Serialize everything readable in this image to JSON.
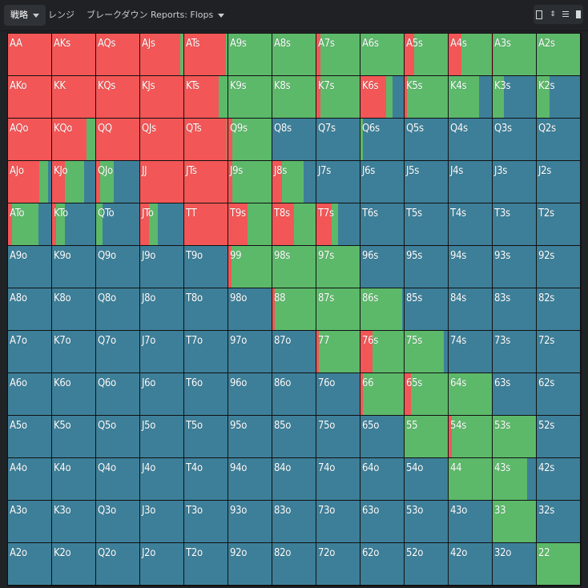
{
  "tabs": [
    {
      "label": "戦略",
      "active": true,
      "dropdown": true
    },
    {
      "label": "レンジ",
      "active": false,
      "dropdown": false
    },
    {
      "label": "ブレークダウン",
      "active": false,
      "dropdown": false
    },
    {
      "label": "Reports: Flops",
      "active": false,
      "dropdown": true
    }
  ],
  "toolbar": {
    "icons": [
      "single-view-icon",
      "expand-icon",
      "list-view-icon",
      "tall-view-icon"
    ]
  },
  "colors": {
    "raise": "#f35656",
    "call": "#5cb96a",
    "fold": "#3d7f99",
    "grid_line": "#111111",
    "background": "#202326"
  },
  "grid": {
    "note": "Each cell: hand label and action frequencies [raise, call, fold] summing to 1.",
    "rows": [
      [
        [
          "AA",
          [
            1,
            0,
            0
          ]
        ],
        [
          "AKs",
          [
            1,
            0,
            0
          ]
        ],
        [
          "AQs",
          [
            1,
            0,
            0
          ]
        ],
        [
          "AJs",
          [
            0.93,
            0.07,
            0
          ]
        ],
        [
          "ATs",
          [
            0.97,
            0.03,
            0
          ]
        ],
        [
          "A9s",
          [
            0,
            1,
            0
          ]
        ],
        [
          "A8s",
          [
            0,
            1,
            0
          ]
        ],
        [
          "A7s",
          [
            0.1,
            0.9,
            0
          ]
        ],
        [
          "A6s",
          [
            0,
            1,
            0
          ]
        ],
        [
          "A5s",
          [
            0.23,
            0.77,
            0
          ]
        ],
        [
          "A4s",
          [
            0.3,
            0.7,
            0
          ]
        ],
        [
          "A3s",
          [
            0.02,
            0.98,
            0
          ]
        ],
        [
          "A2s",
          [
            0,
            1,
            0
          ]
        ]
      ],
      [
        [
          "AKo",
          [
            1,
            0,
            0
          ]
        ],
        [
          "KK",
          [
            1,
            0,
            0
          ]
        ],
        [
          "KQs",
          [
            1,
            0,
            0
          ]
        ],
        [
          "KJs",
          [
            1,
            0,
            0
          ]
        ],
        [
          "KTs",
          [
            0.8,
            0.2,
            0
          ]
        ],
        [
          "K9s",
          [
            0,
            1,
            0
          ]
        ],
        [
          "K8s",
          [
            0,
            1,
            0
          ]
        ],
        [
          "K7s",
          [
            0.1,
            0.9,
            0
          ]
        ],
        [
          "K6s",
          [
            0.6,
            0.15,
            0.25
          ]
        ],
        [
          "K5s",
          [
            0.06,
            0.94,
            0
          ]
        ],
        [
          "K4s",
          [
            0,
            0.7,
            0.3
          ]
        ],
        [
          "K3s",
          [
            0,
            0.25,
            0.75
          ]
        ],
        [
          "K2s",
          [
            0,
            0.3,
            0.7
          ]
        ]
      ],
      [
        [
          "AQo",
          [
            1,
            0,
            0
          ]
        ],
        [
          "KQo",
          [
            0.8,
            0.2,
            0
          ]
        ],
        [
          "QQ",
          [
            1,
            0,
            0
          ]
        ],
        [
          "QJs",
          [
            1,
            0,
            0
          ]
        ],
        [
          "QTs",
          [
            0.98,
            0.02,
            0
          ]
        ],
        [
          "Q9s",
          [
            0.1,
            0.9,
            0
          ]
        ],
        [
          "Q8s",
          [
            0,
            0,
            1
          ]
        ],
        [
          "Q7s",
          [
            0,
            0,
            1
          ]
        ],
        [
          "Q6s",
          [
            0,
            0.06,
            0.94
          ]
        ],
        [
          "Q5s",
          [
            0,
            0,
            1
          ]
        ],
        [
          "Q4s",
          [
            0,
            0,
            1
          ]
        ],
        [
          "Q3s",
          [
            0,
            0,
            1
          ]
        ],
        [
          "Q2s",
          [
            0,
            0,
            1
          ]
        ]
      ],
      [
        [
          "AJo",
          [
            0.73,
            0.2,
            0.07
          ]
        ],
        [
          "KJo",
          [
            0.3,
            0.45,
            0.25
          ]
        ],
        [
          "QJo",
          [
            0.1,
            0.3,
            0.6
          ]
        ],
        [
          "JJ",
          [
            1,
            0,
            0
          ]
        ],
        [
          "JTs",
          [
            1,
            0,
            0
          ]
        ],
        [
          "J9s",
          [
            0.1,
            0.9,
            0
          ]
        ],
        [
          "J8s",
          [
            0.22,
            0.5,
            0.28
          ]
        ],
        [
          "J7s",
          [
            0,
            0,
            1
          ]
        ],
        [
          "J6s",
          [
            0,
            0,
            1
          ]
        ],
        [
          "J5s",
          [
            0,
            0,
            1
          ]
        ],
        [
          "J4s",
          [
            0,
            0,
            1
          ]
        ],
        [
          "J3s",
          [
            0,
            0,
            1
          ]
        ],
        [
          "J2s",
          [
            0,
            0,
            1
          ]
        ]
      ],
      [
        [
          "ATo",
          [
            0.1,
            0.6,
            0.3
          ]
        ],
        [
          "KTo",
          [
            0.1,
            0.2,
            0.7
          ]
        ],
        [
          "QTo",
          [
            0,
            0.15,
            0.85
          ]
        ],
        [
          "JTo",
          [
            0.2,
            0.2,
            0.6
          ]
        ],
        [
          "TT",
          [
            1,
            0,
            0
          ]
        ],
        [
          "T9s",
          [
            0.45,
            0.55,
            0
          ]
        ],
        [
          "T8s",
          [
            0.5,
            0.5,
            0
          ]
        ],
        [
          "T7s",
          [
            0.35,
            0.15,
            0.5
          ]
        ],
        [
          "T6s",
          [
            0,
            0,
            1
          ]
        ],
        [
          "T5s",
          [
            0,
            0,
            1
          ]
        ],
        [
          "T4s",
          [
            0,
            0,
            1
          ]
        ],
        [
          "T3s",
          [
            0,
            0,
            1
          ]
        ],
        [
          "T2s",
          [
            0,
            0,
            1
          ]
        ]
      ],
      [
        [
          "A9o",
          [
            0,
            0,
            1
          ]
        ],
        [
          "K9o",
          [
            0,
            0,
            1
          ]
        ],
        [
          "Q9o",
          [
            0,
            0,
            1
          ]
        ],
        [
          "J9o",
          [
            0,
            0,
            1
          ]
        ],
        [
          "T9o",
          [
            0,
            0,
            1
          ]
        ],
        [
          "99",
          [
            0.07,
            0.93,
            0
          ]
        ],
        [
          "98s",
          [
            0,
            1,
            0
          ]
        ],
        [
          "97s",
          [
            0,
            1,
            0
          ]
        ],
        [
          "96s",
          [
            0,
            0,
            1
          ]
        ],
        [
          "95s",
          [
            0,
            0,
            1
          ]
        ],
        [
          "94s",
          [
            0,
            0,
            1
          ]
        ],
        [
          "93s",
          [
            0,
            0,
            1
          ]
        ],
        [
          "92s",
          [
            0,
            0,
            1
          ]
        ]
      ],
      [
        [
          "A8o",
          [
            0,
            0,
            1
          ]
        ],
        [
          "K8o",
          [
            0,
            0,
            1
          ]
        ],
        [
          "Q8o",
          [
            0,
            0,
            1
          ]
        ],
        [
          "J8o",
          [
            0,
            0,
            1
          ]
        ],
        [
          "T8o",
          [
            0,
            0,
            1
          ]
        ],
        [
          "98o",
          [
            0,
            0,
            1
          ]
        ],
        [
          "88",
          [
            0.06,
            0.94,
            0
          ]
        ],
        [
          "87s",
          [
            0,
            1,
            0
          ]
        ],
        [
          "86s",
          [
            0,
            0.96,
            0.04
          ]
        ],
        [
          "85s",
          [
            0,
            0,
            1
          ]
        ],
        [
          "84s",
          [
            0,
            0,
            1
          ]
        ],
        [
          "83s",
          [
            0,
            0,
            1
          ]
        ],
        [
          "82s",
          [
            0,
            0,
            1
          ]
        ]
      ],
      [
        [
          "A7o",
          [
            0,
            0,
            1
          ]
        ],
        [
          "K7o",
          [
            0,
            0,
            1
          ]
        ],
        [
          "Q7o",
          [
            0,
            0,
            1
          ]
        ],
        [
          "J7o",
          [
            0,
            0,
            1
          ]
        ],
        [
          "T7o",
          [
            0,
            0,
            1
          ]
        ],
        [
          "97o",
          [
            0,
            0,
            1
          ]
        ],
        [
          "87o",
          [
            0,
            0,
            1
          ]
        ],
        [
          "77",
          [
            0.06,
            0.94,
            0
          ]
        ],
        [
          "76s",
          [
            0.27,
            0.73,
            0
          ]
        ],
        [
          "75s",
          [
            0,
            0.9,
            0.1
          ]
        ],
        [
          "74s",
          [
            0,
            0,
            1
          ]
        ],
        [
          "73s",
          [
            0,
            0,
            1
          ]
        ],
        [
          "72s",
          [
            0,
            0,
            1
          ]
        ]
      ],
      [
        [
          "A6o",
          [
            0,
            0,
            1
          ]
        ],
        [
          "K6o",
          [
            0,
            0,
            1
          ]
        ],
        [
          "Q6o",
          [
            0,
            0,
            1
          ]
        ],
        [
          "J6o",
          [
            0,
            0,
            1
          ]
        ],
        [
          "T6o",
          [
            0,
            0,
            1
          ]
        ],
        [
          "96o",
          [
            0,
            0,
            1
          ]
        ],
        [
          "86o",
          [
            0,
            0,
            1
          ]
        ],
        [
          "76o",
          [
            0,
            0,
            1
          ]
        ],
        [
          "66",
          [
            0.05,
            0.95,
            0
          ]
        ],
        [
          "65s",
          [
            0.15,
            0.85,
            0
          ]
        ],
        [
          "64s",
          [
            0,
            1,
            0
          ]
        ],
        [
          "63s",
          [
            0,
            0,
            1
          ]
        ],
        [
          "62s",
          [
            0,
            0,
            1
          ]
        ]
      ],
      [
        [
          "A5o",
          [
            0,
            0,
            1
          ]
        ],
        [
          "K5o",
          [
            0,
            0,
            1
          ]
        ],
        [
          "Q5o",
          [
            0,
            0,
            1
          ]
        ],
        [
          "J5o",
          [
            0,
            0,
            1
          ]
        ],
        [
          "T5o",
          [
            0,
            0,
            1
          ]
        ],
        [
          "95o",
          [
            0,
            0,
            1
          ]
        ],
        [
          "85o",
          [
            0,
            0,
            1
          ]
        ],
        [
          "75o",
          [
            0,
            0,
            1
          ]
        ],
        [
          "65o",
          [
            0,
            0,
            1
          ]
        ],
        [
          "55",
          [
            0,
            1,
            0
          ]
        ],
        [
          "54s",
          [
            0.08,
            0.92,
            0
          ]
        ],
        [
          "53s",
          [
            0,
            1,
            0
          ]
        ],
        [
          "52s",
          [
            0,
            0,
            1
          ]
        ]
      ],
      [
        [
          "A4o",
          [
            0,
            0,
            1
          ]
        ],
        [
          "K4o",
          [
            0,
            0,
            1
          ]
        ],
        [
          "Q4o",
          [
            0,
            0,
            1
          ]
        ],
        [
          "J4o",
          [
            0,
            0,
            1
          ]
        ],
        [
          "T4o",
          [
            0,
            0,
            1
          ]
        ],
        [
          "94o",
          [
            0,
            0,
            1
          ]
        ],
        [
          "84o",
          [
            0,
            0,
            1
          ]
        ],
        [
          "74o",
          [
            0,
            0,
            1
          ]
        ],
        [
          "64o",
          [
            0,
            0,
            1
          ]
        ],
        [
          "54o",
          [
            0,
            0,
            1
          ]
        ],
        [
          "44",
          [
            0,
            1,
            0
          ]
        ],
        [
          "43s",
          [
            0,
            0.8,
            0.2
          ]
        ],
        [
          "42s",
          [
            0,
            0,
            1
          ]
        ]
      ],
      [
        [
          "A3o",
          [
            0,
            0,
            1
          ]
        ],
        [
          "K3o",
          [
            0,
            0,
            1
          ]
        ],
        [
          "Q3o",
          [
            0,
            0,
            1
          ]
        ],
        [
          "J3o",
          [
            0,
            0,
            1
          ]
        ],
        [
          "T3o",
          [
            0,
            0,
            1
          ]
        ],
        [
          "93o",
          [
            0,
            0,
            1
          ]
        ],
        [
          "83o",
          [
            0,
            0,
            1
          ]
        ],
        [
          "73o",
          [
            0,
            0,
            1
          ]
        ],
        [
          "63o",
          [
            0,
            0,
            1
          ]
        ],
        [
          "53o",
          [
            0,
            0,
            1
          ]
        ],
        [
          "43o",
          [
            0,
            0,
            1
          ]
        ],
        [
          "33",
          [
            0,
            1,
            0
          ]
        ],
        [
          "32s",
          [
            0,
            0,
            1
          ]
        ]
      ],
      [
        [
          "A2o",
          [
            0,
            0,
            1
          ]
        ],
        [
          "K2o",
          [
            0,
            0,
            1
          ]
        ],
        [
          "Q2o",
          [
            0,
            0,
            1
          ]
        ],
        [
          "J2o",
          [
            0,
            0,
            1
          ]
        ],
        [
          "T2o",
          [
            0,
            0,
            1
          ]
        ],
        [
          "92o",
          [
            0,
            0,
            1
          ]
        ],
        [
          "82o",
          [
            0,
            0,
            1
          ]
        ],
        [
          "72o",
          [
            0,
            0,
            1
          ]
        ],
        [
          "62o",
          [
            0,
            0,
            1
          ]
        ],
        [
          "52o",
          [
            0,
            0,
            1
          ]
        ],
        [
          "42o",
          [
            0,
            0,
            1
          ]
        ],
        [
          "32o",
          [
            0,
            0,
            1
          ]
        ],
        [
          "22",
          [
            0,
            1,
            0
          ]
        ]
      ]
    ]
  }
}
